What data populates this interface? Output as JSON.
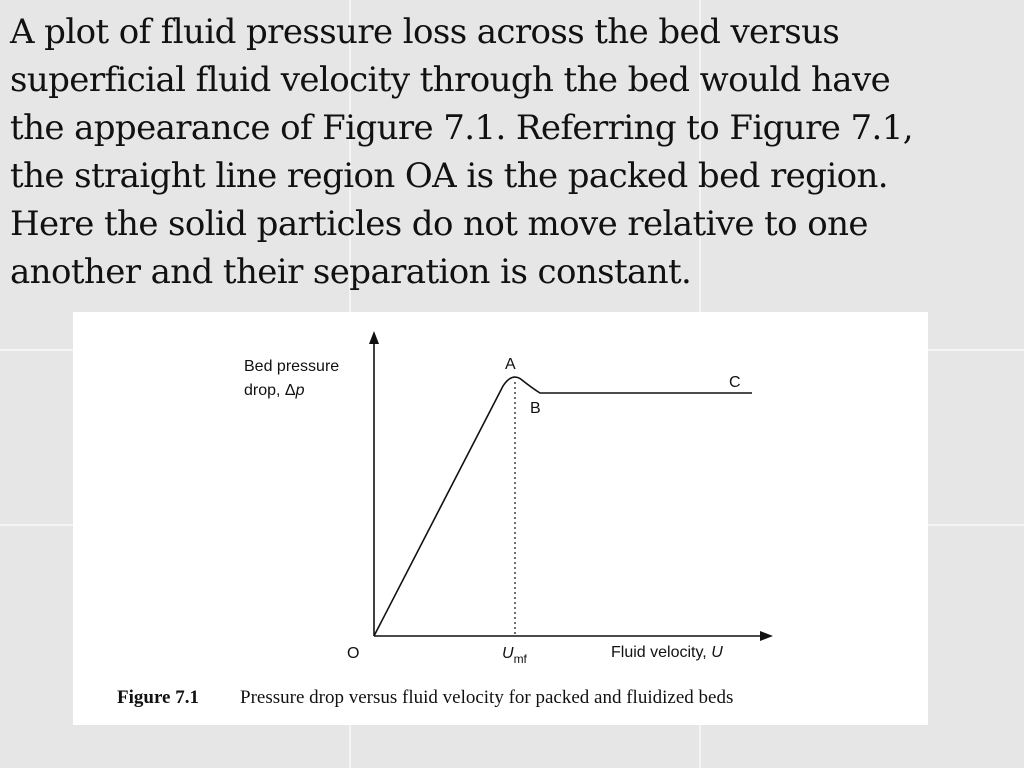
{
  "paragraph": {
    "lines": [
      "A plot of fluid pressure loss across the bed versus",
      "superficial fluid velocity through the bed would have",
      "the appearance of Figure 7.1. Referring to Figure 7.1,",
      "the straight line region OA is the packed bed region.",
      "Here the solid particles do not move relative to one",
      "another and their separation is constant."
    ]
  },
  "figure": {
    "y_label": {
      "line1": "Bed pressure",
      "line2": "drop, Δ",
      "variable": "p"
    },
    "x_label": {
      "text": "Fluid velocity, ",
      "variable": "U"
    },
    "marker": {
      "symbol": "U",
      "subscript": "mf"
    },
    "points": {
      "origin": "O",
      "a": "A",
      "b": "B",
      "c": "C"
    },
    "caption": {
      "number": "Figure 7.1",
      "text": "Pressure drop versus fluid velocity for packed and fluidized beds"
    }
  }
}
